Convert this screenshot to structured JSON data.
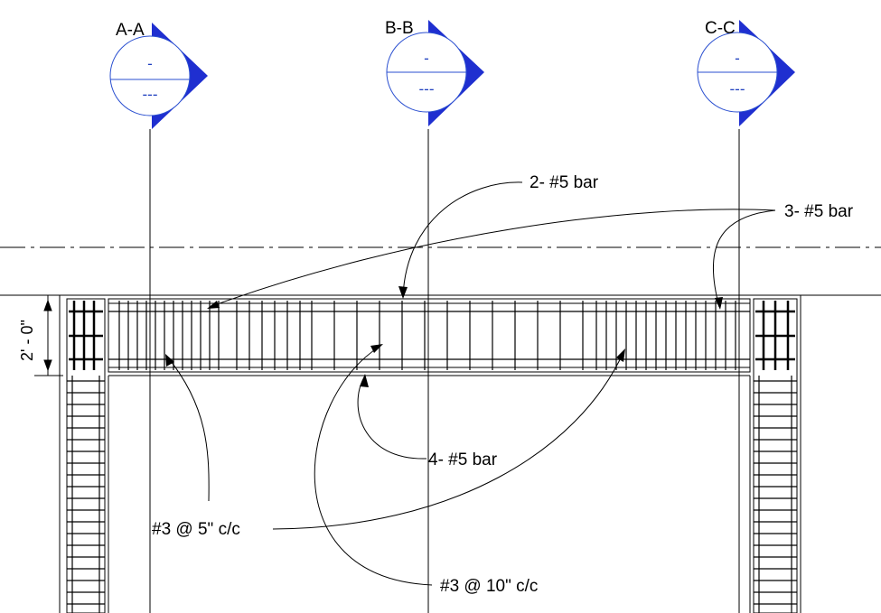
{
  "sections": [
    {
      "id": "A-A",
      "top": "-",
      "bottom": "---"
    },
    {
      "id": "B-B",
      "top": "-",
      "bottom": "---"
    },
    {
      "id": "C-C",
      "top": "-",
      "bottom": "---"
    }
  ],
  "dimension": "2' - 0\"",
  "annotations": {
    "bar_2": "2- #5 bar",
    "bar_3": "3- #5 bar",
    "bar_4": "4- #5 bar",
    "stirrup_5": "#3 @ 5\" c/c",
    "stirrup_10": "#3 @ 10\" c/c"
  },
  "colors": {
    "section_fill": "#1f2fd0",
    "section_line": "#2a4fd0",
    "line": "#000000"
  }
}
